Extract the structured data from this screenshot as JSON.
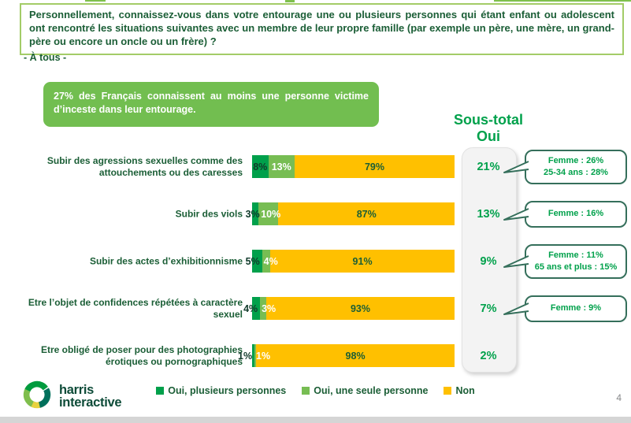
{
  "header": {
    "question": "Personnellement, connaissez-vous dans votre entourage une ou plusieurs personnes qui étant enfant ou adolescent ont rencontré les situations suivantes avec un membre de leur propre famille (par exemple un père, une mère, un grand-père ou encore un oncle ou un frère) ?",
    "audience": "- À tous -"
  },
  "highlight": {
    "text": "27% des Français connaissent au moins une personne victime d’inceste dans leur entourage."
  },
  "subtotal": {
    "title_line1": "Sous-total",
    "title_line2": "Oui"
  },
  "legend": [
    {
      "label": "Oui, plusieurs personnes",
      "color": "#00a04b"
    },
    {
      "label": "Oui, une seule personne",
      "color": "#77bd53"
    },
    {
      "label": "Non",
      "color": "#ffc000"
    }
  ],
  "footer": {
    "logo_line1": "harris",
    "logo_line2": "interactive",
    "page_number": "4"
  },
  "colors": {
    "dark_green_series": "#00a04b",
    "light_green_series": "#77bd53",
    "yellow_series": "#ffc000",
    "text_green": "#1b5e36",
    "accent_green": "#00a14b",
    "callout_border": "#356f5b",
    "highlight_bg": "#72be50",
    "question_border": "#a3cc67"
  },
  "chart_data": {
    "type": "bar",
    "orientation": "horizontal",
    "stacked": true,
    "xlim": [
      0,
      100
    ],
    "value_suffix": "%",
    "categories": [
      "Subir des agressions sexuelles comme des attouchements ou des caresses",
      "Subir des viols",
      "Subir des actes d’exhibitionnisme",
      "Etre l’objet de confidences répétées à caractère sexuel",
      "Etre obligé de poser pour des photographies érotiques ou pornographiques"
    ],
    "series": [
      {
        "name": "Oui, plusieurs personnes",
        "color": "#00a04b",
        "values": [
          8,
          3,
          5,
          4,
          1
        ]
      },
      {
        "name": "Oui, une seule personne",
        "color": "#77bd53",
        "values": [
          13,
          10,
          4,
          3,
          1
        ]
      },
      {
        "name": "Non",
        "color": "#ffc000",
        "values": [
          79,
          87,
          91,
          93,
          98
        ]
      }
    ],
    "subtotals_oui": [
      "21%",
      "13%",
      "9%",
      "7%",
      "2%"
    ],
    "callouts": [
      [
        "Femme : 26%",
        "25-34 ans : 28%"
      ],
      [
        "Femme : 16%"
      ],
      [
        "Femme : 11%",
        "65 ans et plus : 15%"
      ],
      [
        "Femme : 9%"
      ],
      []
    ]
  }
}
